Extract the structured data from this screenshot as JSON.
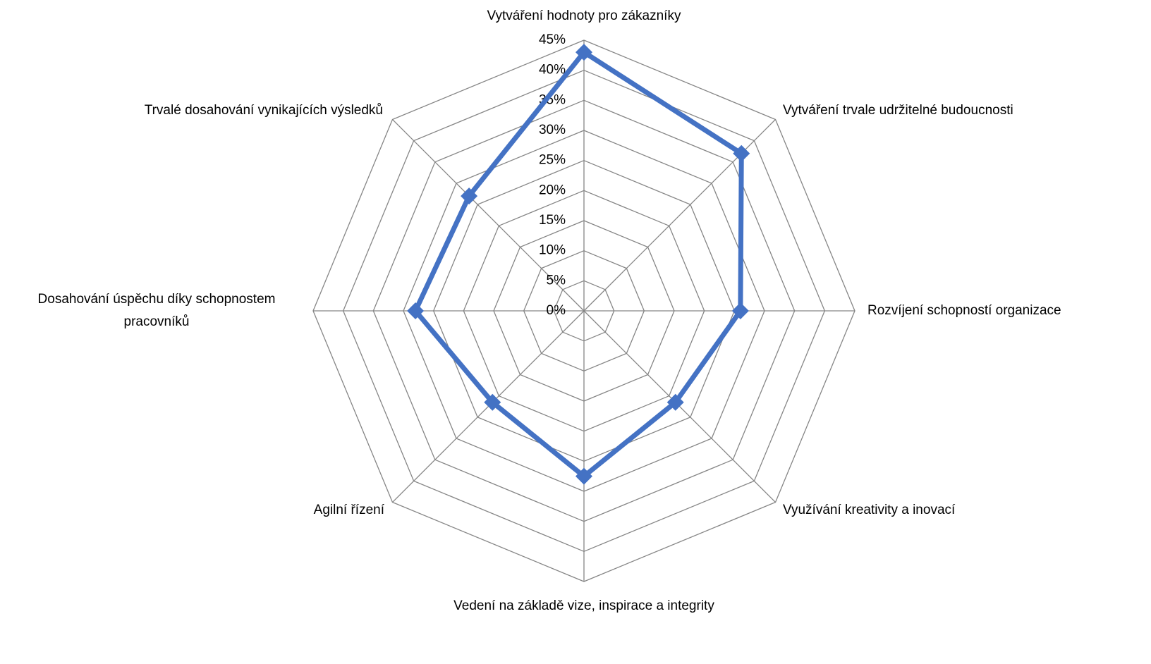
{
  "chart_data": {
    "type": "radar",
    "categories": [
      "Vytváření hodnoty pro zákazníky",
      "Vytváření trvale udržitelné budoucnosti",
      "Rozvíjení schopností organizace",
      "Využívání kreativity a inovací",
      "Vedení na základě vize, inspirace a integrity",
      "Agilní řízení",
      "Dosahování úspěchu díky schopnostem pracovníků",
      "Trvalé dosahování vynikajících výsledků"
    ],
    "series": [
      {
        "color": "#4472c4",
        "values": [
          43,
          37,
          26,
          21.5,
          27.5,
          21.5,
          28,
          27
        ]
      }
    ],
    "ylim": [
      0,
      45
    ],
    "yticks": [
      {
        "value": 0,
        "label": "0%"
      },
      {
        "value": 5,
        "label": "5%"
      },
      {
        "value": 10,
        "label": "10%"
      },
      {
        "value": 15,
        "label": "15%"
      },
      {
        "value": 20,
        "label": "20%"
      },
      {
        "value": 25,
        "label": "25%"
      },
      {
        "value": 30,
        "label": "30%"
      },
      {
        "value": 35,
        "label": "35%"
      },
      {
        "value": 40,
        "label": "40%"
      },
      {
        "value": 45,
        "label": "45%"
      }
    ],
    "grid": true
  }
}
